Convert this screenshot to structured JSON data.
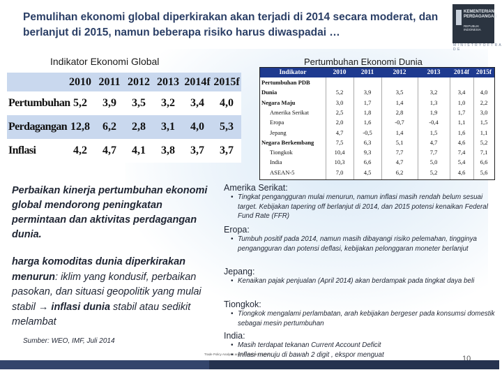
{
  "title": "Pemulihan ekonomi global diperkirakan akan terjadi di 2014 secara moderat, dan berlanjut di 2015, namun beberapa risiko harus diwaspadai …",
  "logo": {
    "line1": "KEMENTERIAN",
    "line2": "PERDAGANGAN",
    "line3": "REPUBLIK INDONESIA",
    "sub": "M I N I S T R Y   O F   T R A D E"
  },
  "left_table": {
    "title": "Indikator Ekonomi Global",
    "headers": [
      "2010",
      "2011",
      "2012",
      "2013",
      "2014f",
      "2015f"
    ],
    "rows": [
      {
        "label": "Pertumbuhan",
        "values": [
          "5,2",
          "3,9",
          "3,5",
          "3,2",
          "3,4",
          "4,0"
        ]
      },
      {
        "label": "Perdagangan",
        "values": [
          "12,8",
          "6,2",
          "2,8",
          "3,1",
          "4,0",
          "5,3"
        ]
      },
      {
        "label": "Inflasi",
        "values": [
          "4,2",
          "4,7",
          "4,1",
          "3,8",
          "3,7",
          "3,7"
        ]
      }
    ]
  },
  "right_table": {
    "title": "Pertumbuhan Ekonomi Dunia",
    "headers": [
      "Indikator",
      "2010",
      "2011",
      "2012",
      "2013",
      "2014f",
      "2015f"
    ],
    "rows": [
      {
        "label": "Pertumbuhan PDB",
        "values": [
          "",
          "",
          "",
          "",
          "",
          ""
        ],
        "bold": true,
        "indent": false
      },
      {
        "label": "Dunia",
        "values": [
          "5,2",
          "3,9",
          "3,5",
          "3,2",
          "3,4",
          "4,0"
        ],
        "bold": true,
        "indent": false
      },
      {
        "label": "Negara Maju",
        "values": [
          "3,0",
          "1,7",
          "1,4",
          "1,3",
          "1,0",
          "2,2"
        ],
        "bold": true,
        "indent": false
      },
      {
        "label": "Amerika Serikat",
        "values": [
          "2,5",
          "1,8",
          "2,8",
          "1,9",
          "1,7",
          "3,0"
        ],
        "bold": false,
        "indent": true
      },
      {
        "label": "Eropa",
        "values": [
          "2,0",
          "1,6",
          "-0,7",
          "-0,4",
          "1,1",
          "1,5"
        ],
        "bold": false,
        "indent": true
      },
      {
        "label": "Jepang",
        "values": [
          "4,7",
          "-0,5",
          "1,4",
          "1,5",
          "1,6",
          "1,1"
        ],
        "bold": false,
        "indent": true
      },
      {
        "label": "Negara Berkembang",
        "values": [
          "7,5",
          "6,3",
          "5,1",
          "4,7",
          "4,6",
          "5,2"
        ],
        "bold": true,
        "indent": false
      },
      {
        "label": "Tiongkok",
        "values": [
          "10,4",
          "9,3",
          "7,7",
          "7,7",
          "7,4",
          "7,1"
        ],
        "bold": false,
        "indent": true
      },
      {
        "label": "India",
        "values": [
          "10,3",
          "6,6",
          "4,7",
          "5,0",
          "5,4",
          "6,6"
        ],
        "bold": false,
        "indent": true
      },
      {
        "label": "ASEAN-5",
        "values": [
          "7,0",
          "4,5",
          "6,2",
          "5,2",
          "4,6",
          "5,6"
        ],
        "bold": false,
        "indent": true
      }
    ]
  },
  "left_text": {
    "p1": "Perbaikan kinerja pertumbuhan ekonomi  global mendorong peningkatan permintaan dan aktivitas perdagangan dunia.",
    "p2_bold": "harga komoditas dunia diperkirakan menurun",
    "p2_rest": ": iklim yang kondusif, perbaikan pasokan, dan situasi geopolitik yang mulai stabil ",
    "p2_arrow": "→",
    "p2_bold2": " inflasi dunia",
    "p2_end": " stabil atau sedikit melambat",
    "source": "Sumber: WEO, IMF, Juli 2014"
  },
  "right_text": [
    {
      "heading": "Amerika Serikat:",
      "bullet": "Tingkat pengangguran  mulai menurun, namun inflasi masih rendah belum sesuai target. Kebijakan tapering off berlanjut di 2014, dan 2015 potensi kenaikan Federal Fund Rate (FFR)"
    },
    {
      "heading": "Eropa:",
      "bullet": "Tumbuh positif pada 2014, namun masih dibayangi risiko pelemahan, tingginya pengangguran dan potensi deflasi, kebijakan pelonggaran moneter berlanjut"
    },
    {
      "heading": "Jepang:",
      "bullet": "Kenaikan pajak penjualan (April 2014) akan berdampak pada tingkat daya beli"
    },
    {
      "heading": "Tiongkok:",
      "bullet": "Tiongkok mengalami perlambatan, arah kebijakan bergeser pada konsumsi domestik sebagai mesin pertumbuhan"
    },
    {
      "heading": "India:",
      "bullet": "Masih terdapat tekanan Current Account Deficit"
    },
    {
      "heading": "",
      "bullet": "Inflasi menuju di bawah 2 digit , ekspor menguat"
    }
  ],
  "footer_note": "Trade Policy Analysis and Development Agency",
  "page_number": "10"
}
